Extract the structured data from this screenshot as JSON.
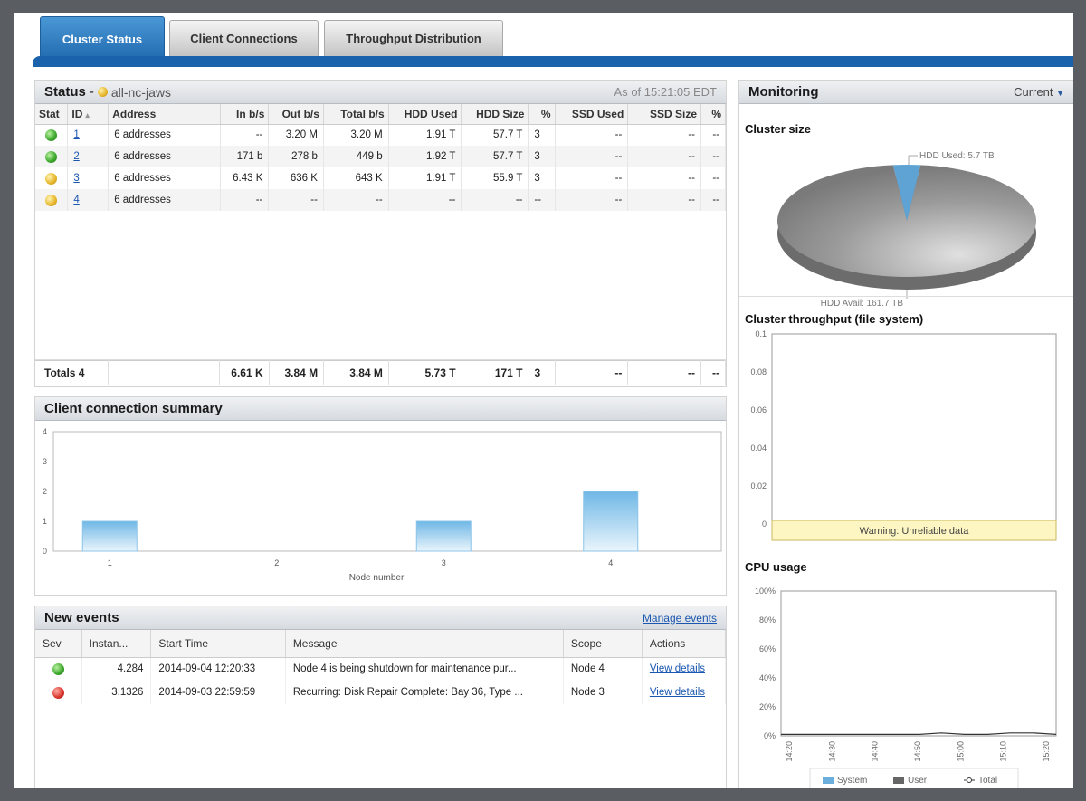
{
  "tabs": [
    "Cluster Status",
    "Client Connections",
    "Throughput Distribution"
  ],
  "status": {
    "title": "Status",
    "cluster_name": "all-nc-jaws",
    "as_of": "As of 15:21:05 EDT",
    "columns": [
      "Stat",
      "ID",
      "Address",
      "In b/s",
      "Out b/s",
      "Total b/s",
      "HDD Used",
      "HDD Size",
      "%",
      "SSD Used",
      "SSD Size",
      "%"
    ],
    "rows": [
      {
        "stat": "green",
        "id": "1",
        "address": "6 addresses",
        "in": "--",
        "out": "3.20 M",
        "total": "3.20 M",
        "hdd_used": "1.91 T",
        "hdd_size": "57.7 T",
        "pct": "3",
        "ssd_used": "--",
        "ssd_size": "--",
        "pct2": "--"
      },
      {
        "stat": "green",
        "id": "2",
        "address": "6 addresses",
        "in": "171 b",
        "out": "278 b",
        "total": "449 b",
        "hdd_used": "1.92 T",
        "hdd_size": "57.7 T",
        "pct": "3",
        "ssd_used": "--",
        "ssd_size": "--",
        "pct2": "--"
      },
      {
        "stat": "yellow",
        "id": "3",
        "address": "6 addresses",
        "in": "6.43 K",
        "out": "636 K",
        "total": "643 K",
        "hdd_used": "1.91 T",
        "hdd_size": "55.9 T",
        "pct": "3",
        "ssd_used": "--",
        "ssd_size": "--",
        "pct2": "--"
      },
      {
        "stat": "yellow",
        "id": "4",
        "address": "6 addresses",
        "in": "--",
        "out": "--",
        "total": "--",
        "hdd_used": "--",
        "hdd_size": "--",
        "pct": "--",
        "ssd_used": "--",
        "ssd_size": "--",
        "pct2": "--"
      }
    ],
    "totals": {
      "label": "Totals",
      "count": "4",
      "in": "6.61 K",
      "out": "3.84 M",
      "total": "3.84 M",
      "hdd_used": "5.73 T",
      "hdd_size": "171 T",
      "pct": "3",
      "ssd_used": "--",
      "ssd_size": "--",
      "pct2": "--"
    }
  },
  "client_summary": {
    "title": "Client connection summary",
    "chart_data": {
      "type": "bar",
      "categories": [
        "1",
        "2",
        "3",
        "4"
      ],
      "values": [
        1,
        0,
        1,
        2
      ],
      "xlabel": "Node number",
      "ylabel": "",
      "ylim": [
        0,
        4
      ],
      "yticks": [
        "0",
        "1",
        "2",
        "3",
        "4"
      ]
    }
  },
  "events": {
    "title": "New events",
    "manage_link": "Manage events",
    "columns": [
      "Sev",
      "Instan...",
      "Start Time",
      "Message",
      "Scope",
      "Actions"
    ],
    "rows": [
      {
        "sev": "green",
        "instance": "4.284",
        "start": "2014-09-04 12:20:33",
        "message": "Node 4 is being shutdown for maintenance pur...",
        "scope": "Node 4",
        "action": "View details"
      },
      {
        "sev": "red",
        "instance": "3.1326",
        "start": "2014-09-03 22:59:59",
        "message": "Recurring: Disk Repair Complete: Bay 36, Type ...",
        "scope": "Node 3",
        "action": "View details"
      }
    ]
  },
  "monitoring": {
    "title": "Monitoring",
    "dropdown": "Current",
    "cluster_size": {
      "title": "Cluster size",
      "chart_data": {
        "type": "pie",
        "slices": [
          {
            "label": "HDD Used: 5.7 TB",
            "value": 5.7,
            "color": "#5fa3d4"
          },
          {
            "label": "HDD Avail: 161.7 TB",
            "value": 161.7,
            "color": "#8c8c8c"
          }
        ]
      }
    },
    "throughput": {
      "title": "Cluster throughput (file system)",
      "warning": "Warning: Unreliable data",
      "chart_data": {
        "type": "line",
        "yticks": [
          "0",
          "0.02",
          "0.04",
          "0.06",
          "0.08",
          "0.1"
        ],
        "ylim": [
          0,
          0.1
        ],
        "series": []
      }
    },
    "cpu": {
      "title": "CPU usage",
      "chart_data": {
        "type": "area",
        "yticks": [
          "0%",
          "20%",
          "40%",
          "60%",
          "80%",
          "100%"
        ],
        "xticks": [
          "14:20",
          "14:30",
          "14:40",
          "14:50",
          "15:00",
          "15:10",
          "15:20"
        ],
        "ylim": [
          0,
          100
        ],
        "legend": [
          "System",
          "User",
          "Total"
        ],
        "series": [
          {
            "name": "Total",
            "values": [
              1,
              1,
              1,
              1,
              1,
              1,
              1,
              2,
              1,
              1,
              2,
              2,
              1
            ]
          }
        ]
      }
    }
  }
}
